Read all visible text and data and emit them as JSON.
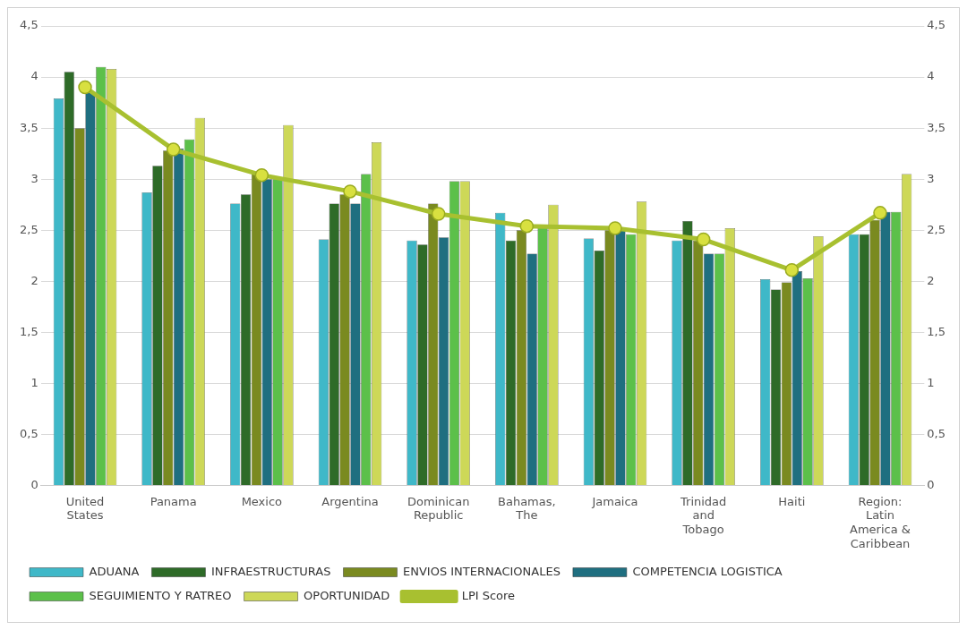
{
  "chart_data": {
    "type": "bar",
    "categories": [
      "United States",
      "Panama",
      "Mexico",
      "Argentina",
      "Dominican Republic",
      "Bahamas, The",
      "Jamaica",
      "Trinidad and Tobago",
      "Haiti",
      "Region: Latin America & Caribbean"
    ],
    "series": [
      {
        "name": "ADUANA",
        "color": "#3fb8c8",
        "values": [
          3.79,
          2.87,
          2.76,
          2.41,
          2.4,
          2.67,
          2.42,
          2.4,
          2.02,
          2.46
        ]
      },
      {
        "name": "INFRAESTRUCTURAS",
        "color": "#2e6b28",
        "values": [
          4.05,
          3.13,
          2.85,
          2.76,
          2.36,
          2.4,
          2.3,
          2.59,
          1.92,
          2.46
        ]
      },
      {
        "name": "ENVIOS INTERNACIONALES",
        "color": "#7a8a20",
        "values": [
          3.5,
          3.28,
          3.05,
          2.85,
          2.76,
          2.5,
          2.5,
          2.4,
          1.99,
          2.6
        ]
      },
      {
        "name": "COMPETENCIA LOGISTICA",
        "color": "#1f6f80",
        "values": [
          3.85,
          3.3,
          3.0,
          2.76,
          2.43,
          2.27,
          2.5,
          2.27,
          2.1,
          2.68
        ]
      },
      {
        "name": "SEGUIMIENTO Y RATREO",
        "color": "#5cc04a",
        "values": [
          4.1,
          3.39,
          3.0,
          3.05,
          2.98,
          2.55,
          2.46,
          2.27,
          2.03,
          2.68
        ]
      },
      {
        "name": "OPORTUNIDAD",
        "color": "#cdd858",
        "values": [
          4.08,
          3.6,
          3.53,
          3.36,
          2.98,
          2.75,
          2.78,
          2.52,
          2.44,
          3.05
        ]
      },
      {
        "name": "LPI Score",
        "type": "line",
        "color": "#a8c030",
        "values": [
          3.9,
          3.29,
          3.04,
          2.88,
          2.66,
          2.54,
          2.52,
          2.41,
          2.11,
          2.67
        ]
      }
    ],
    "ylim": [
      0,
      4.5
    ],
    "yticks": [
      0,
      {
        "value": 0.5,
        "label": "0,5"
      },
      1,
      {
        "value": 1.5,
        "label": "1,5"
      },
      2,
      {
        "value": 2.5,
        "label": "2,5"
      },
      3,
      {
        "value": 3.5,
        "label": "3,5"
      },
      4,
      {
        "value": 4.5,
        "label": "4,5"
      }
    ],
    "y2lim": [
      0,
      4.5
    ],
    "y2ticks": [
      0,
      {
        "value": 0.5,
        "label": "0,5"
      },
      1,
      {
        "value": 1.5,
        "label": "1,5"
      },
      2,
      {
        "value": 2.5,
        "label": "2,5"
      },
      3,
      {
        "value": 3.5,
        "label": "3,5"
      },
      4,
      {
        "value": 4.5,
        "label": "4,5"
      }
    ],
    "grid": "y",
    "legend": "bottom",
    "marker": "circle"
  }
}
